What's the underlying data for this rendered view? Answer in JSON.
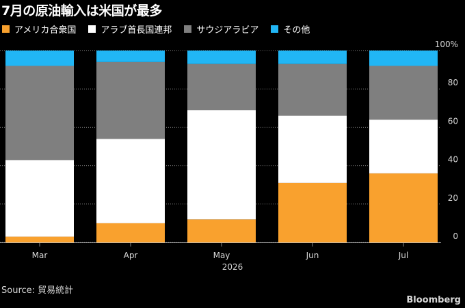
{
  "title": "7月の原油輸入は米国が最多",
  "colors": {
    "background": "#000000",
    "usa": "#f9a12e",
    "uae": "#ffffff",
    "saudi": "#7f7f7f",
    "other": "#21b6f5",
    "text": "#d8d8d8",
    "grid": "#888888"
  },
  "chart_data": {
    "type": "bar",
    "stacked": true,
    "categories": [
      "Mar",
      "Apr",
      "May",
      "Jun",
      "Jul"
    ],
    "x_sublabel": "2026",
    "series": [
      {
        "name": "アメリカ合衆国",
        "color": "#f9a12e",
        "values": [
          3,
          10,
          12,
          31,
          36
        ]
      },
      {
        "name": "アラブ首長国連邦",
        "color": "#ffffff",
        "values": [
          40,
          44,
          57,
          35,
          28
        ]
      },
      {
        "name": "サウジアラビア",
        "color": "#7f7f7f",
        "values": [
          49,
          40,
          24,
          27,
          28
        ]
      },
      {
        "name": "その他",
        "color": "#21b6f5",
        "values": [
          8,
          6,
          7,
          7,
          8
        ]
      }
    ],
    "ylim": [
      0,
      100
    ],
    "yticks": [
      {
        "value": 0,
        "label": "0"
      },
      {
        "value": 20,
        "label": "20"
      },
      {
        "value": 40,
        "label": "40"
      },
      {
        "value": 60,
        "label": "60"
      },
      {
        "value": 80,
        "label": "80"
      },
      {
        "value": 100,
        "label": "100%"
      }
    ],
    "y_axis_position": "right",
    "grid": true,
    "legend_position": "top-left"
  },
  "footer": {
    "source": "Source: 貿易統計",
    "brand": "Bloomberg"
  }
}
